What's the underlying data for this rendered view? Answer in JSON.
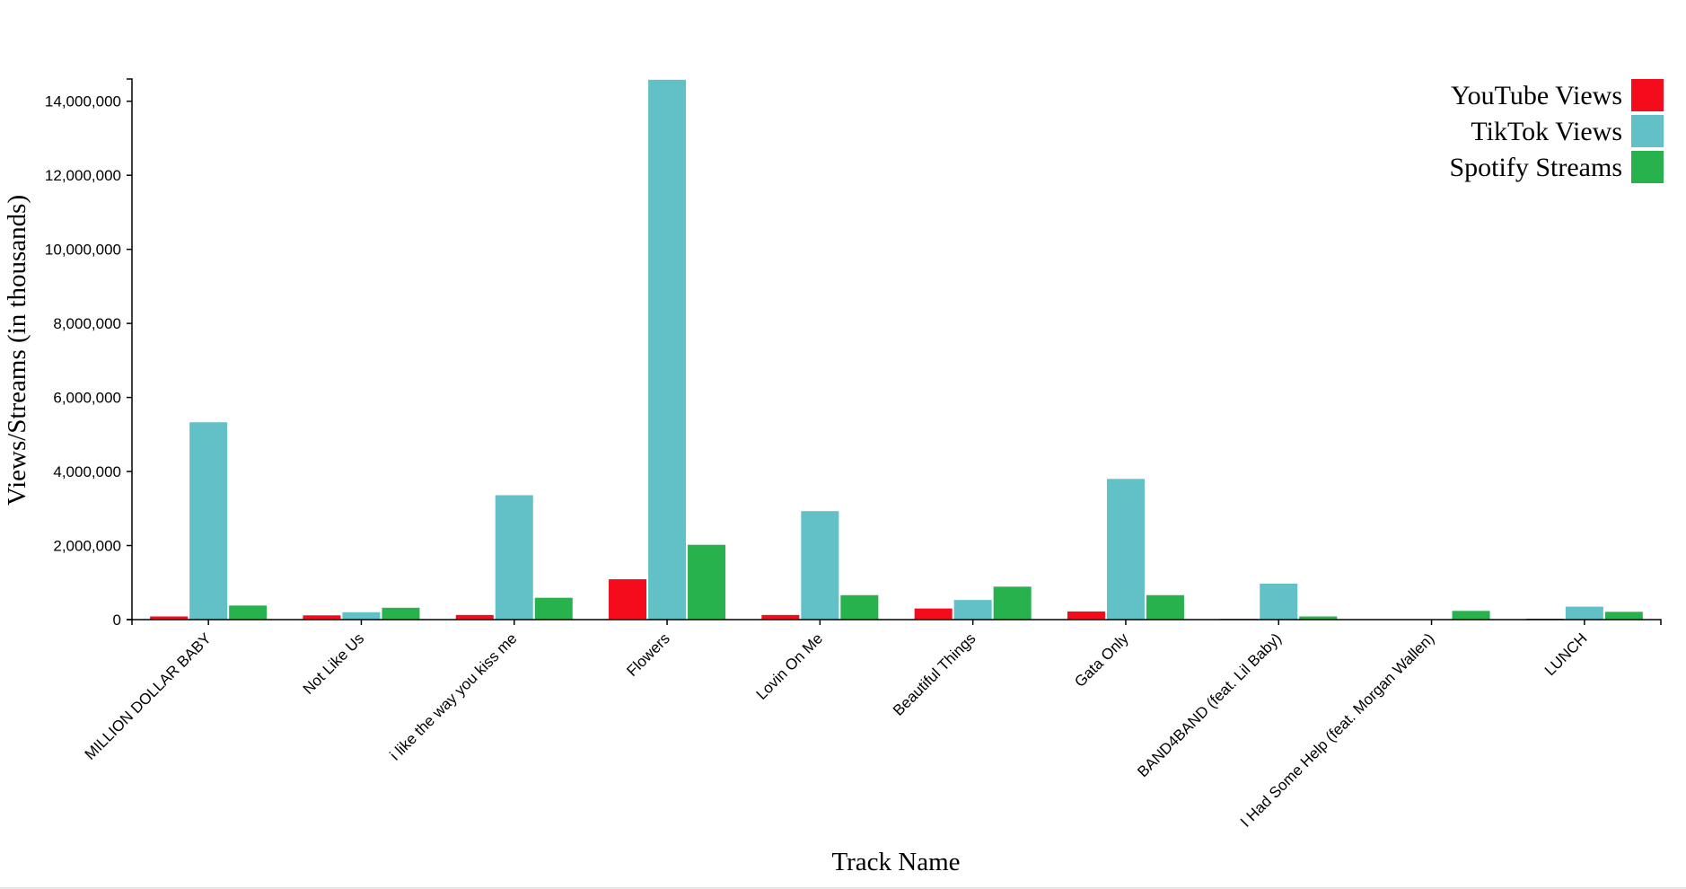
{
  "colors": {
    "youtube": "#f50c1c",
    "tiktok": "#62c1c7",
    "spotify": "#27b24e"
  },
  "chart_data": {
    "type": "bar",
    "xlabel": "Track Name",
    "ylabel": "Views/Streams (in thousands)",
    "ylim": [
      0,
      14600000
    ],
    "yticks": [
      0,
      2000000,
      4000000,
      6000000,
      8000000,
      10000000,
      12000000,
      14000000
    ],
    "ytick_labels": [
      "0",
      "2,000,000",
      "4,000,000",
      "6,000,000",
      "8,000,000",
      "10,000,000",
      "12,000,000",
      "14,000,000"
    ],
    "grid": false,
    "legend_position": "top-right",
    "categories": [
      "MILLION DOLLAR BABY",
      "Not Like Us",
      "i like the way you kiss me",
      "Flowers",
      "Lovin On Me",
      "Beautiful Things",
      "Gata Only",
      "BAND4BAND (feat. Lil Baby)",
      "I Had Some Help (feat. Morgan Wallen)",
      "LUNCH"
    ],
    "series": [
      {
        "name": "YouTube Views",
        "color": "#f50c1c",
        "values": [
          85000,
          115000,
          125000,
          1090000,
          125000,
          300000,
          220000,
          20000,
          12000,
          25000
        ]
      },
      {
        "name": "TikTok Views",
        "color": "#62c1c7",
        "values": [
          5330000,
          200000,
          3360000,
          14580000,
          2930000,
          530000,
          3800000,
          970000,
          5000,
          350000
        ]
      },
      {
        "name": "Spotify Streams",
        "color": "#27b24e",
        "values": [
          380000,
          320000,
          590000,
          2020000,
          660000,
          890000,
          660000,
          85000,
          235000,
          210000
        ]
      }
    ]
  }
}
